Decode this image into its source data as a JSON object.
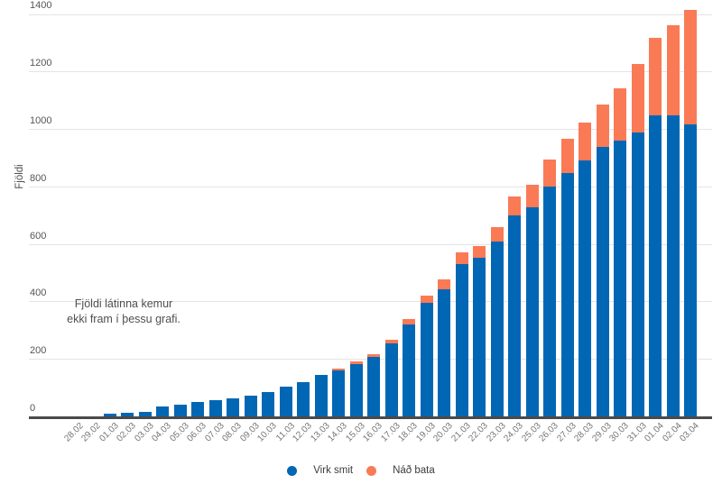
{
  "chart_data": {
    "type": "bar",
    "stacked": true,
    "title": "",
    "xlabel": "",
    "ylabel": "Fjöldi",
    "ylim": [
      0,
      1400
    ],
    "yticks": [
      0,
      200,
      400,
      600,
      800,
      1000,
      1200,
      1400
    ],
    "grid": "horizontal",
    "legend_position": "bottom-center",
    "categories": [
      "28.02",
      "29.02",
      "01.03",
      "02.03",
      "03.03",
      "04.03",
      "05.03",
      "06.03",
      "07.03",
      "08.03",
      "09.03",
      "10.03",
      "11.03",
      "12.03",
      "13.03",
      "14.03",
      "15.03",
      "16.03",
      "17.03",
      "18.03",
      "19.03",
      "20.03",
      "21.03",
      "22.03",
      "23.03",
      "24.03",
      "25.03",
      "26.03",
      "27.03",
      "28.03",
      "29.03",
      "30.03",
      "31.03",
      "01.04",
      "02.04",
      "03.04"
    ],
    "series": [
      {
        "name": "Virk smit",
        "color": "#0167b5",
        "values": [
          1,
          1,
          9,
          14,
          17,
          34,
          42,
          50,
          58,
          62,
          71,
          85,
          105,
          120,
          143,
          160,
          182,
          206,
          254,
          320,
          395,
          441,
          530,
          551,
          608,
          699,
          728,
          798,
          848,
          892,
          939,
          961,
          989,
          1046,
          1046,
          1017
        ]
      },
      {
        "name": "Náð bata",
        "color": "#fa7a56",
        "values": [
          0,
          0,
          0,
          0,
          0,
          0,
          0,
          0,
          0,
          0,
          0,
          0,
          0,
          0,
          0,
          7,
          8,
          11,
          13,
          19,
          25,
          37,
          40,
          42,
          50,
          66,
          79,
          97,
          118,
          130,
          145,
          180,
          236,
          270,
          314,
          396
        ]
      }
    ],
    "annotation": {
      "line1": "Fjöldi látinna kemur",
      "line2": "ekki fram í þessu grafi."
    }
  },
  "colors": {
    "active": "#0167b5",
    "recovered": "#fa7a56",
    "axis": "#4a4a4a",
    "gridline": "#e4e4e4",
    "background": "#ffffff"
  }
}
